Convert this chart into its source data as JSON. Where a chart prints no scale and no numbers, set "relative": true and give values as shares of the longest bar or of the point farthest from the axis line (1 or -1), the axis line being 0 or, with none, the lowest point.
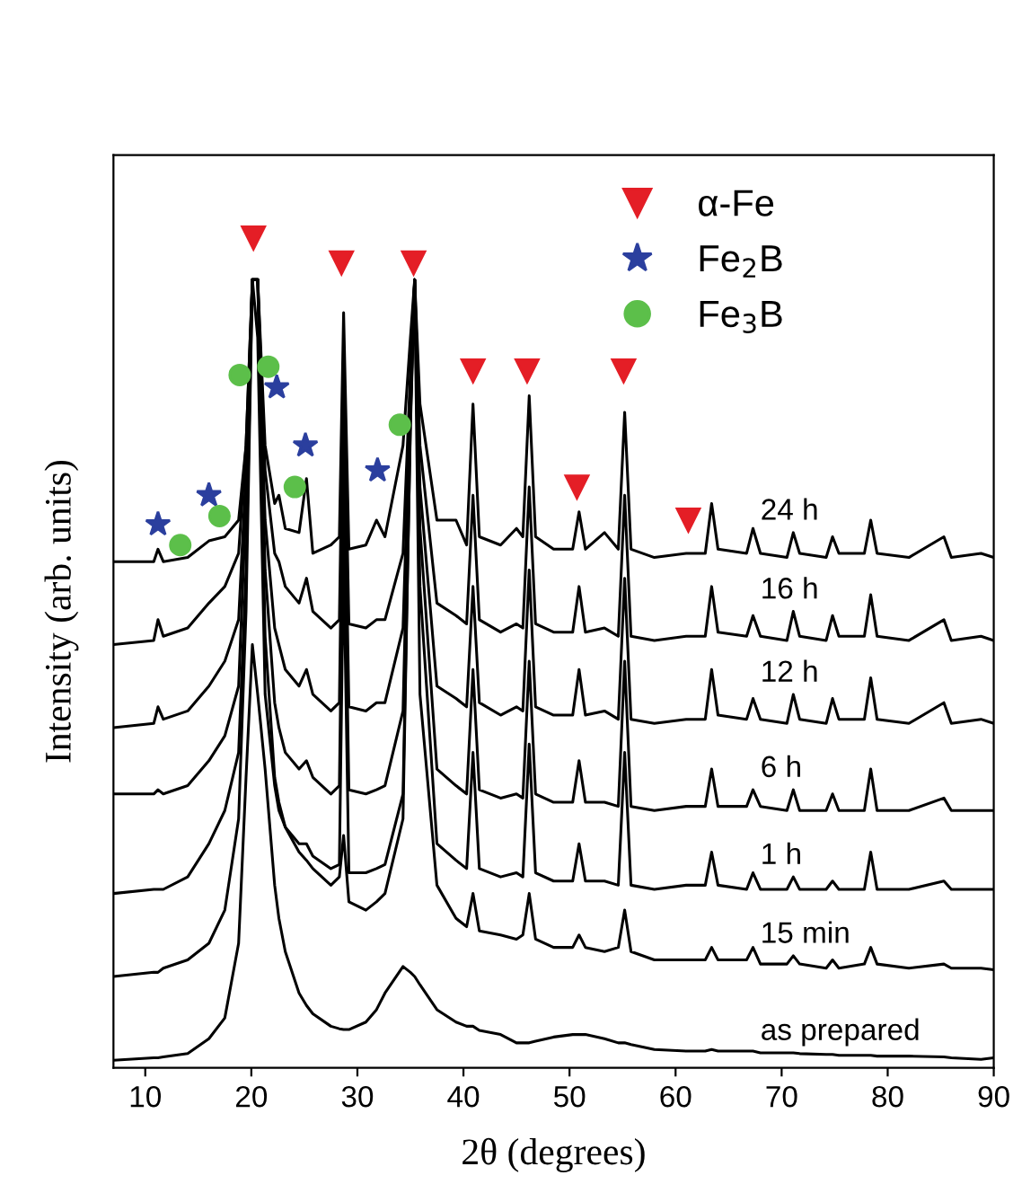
{
  "chart_data": {
    "type": "line",
    "relative": true,
    "xlabel": "2θ (degrees)",
    "ylabel": "Intensity (arb. units)",
    "x": [
      7,
      10.8,
      11.2,
      11.7,
      14,
      16,
      17.5,
      18.8,
      19.5,
      20.1,
      20.6,
      21.3,
      22.2,
      22.6,
      23.2,
      24.5,
      25.2,
      25.8,
      27.5,
      28.3,
      28.7,
      29.2,
      30.8,
      31.8,
      32.6,
      34.3,
      35.0,
      35.4,
      35.9,
      37.5,
      39.3,
      40.3,
      40.9,
      41.5,
      43.5,
      45.0,
      45.6,
      46.2,
      46.8,
      48.5,
      50.3,
      50.9,
      51.5,
      53.3,
      54.6,
      55.2,
      55.8,
      58,
      61,
      62.8,
      63.4,
      64,
      66.7,
      67.3,
      68,
      70.5,
      71.1,
      71.7,
      74.2,
      74.8,
      75.4,
      77.8,
      78.4,
      79,
      82,
      85.3,
      86,
      88.8,
      90
    ],
    "xlim": [
      7,
      90
    ],
    "xticks": [
      10,
      20,
      30,
      40,
      50,
      60,
      70,
      80,
      90
    ],
    "grid": false,
    "legend": "top right",
    "line_style": "solid",
    "marker": "none",
    "series": [
      {
        "name": "24 h",
        "color": "#000000",
        "values": [
          0.61,
          0.61,
          0.625,
          0.61,
          0.615,
          0.635,
          0.64,
          0.66,
          0.75,
          0.95,
          0.95,
          0.75,
          0.68,
          0.69,
          0.65,
          0.645,
          0.71,
          0.62,
          0.63,
          0.64,
          0.91,
          0.625,
          0.63,
          0.66,
          0.64,
          0.75,
          0.88,
          0.95,
          0.8,
          0.66,
          0.66,
          0.63,
          0.8,
          0.64,
          0.63,
          0.65,
          0.64,
          0.81,
          0.64,
          0.625,
          0.625,
          0.67,
          0.625,
          0.645,
          0.625,
          0.79,
          0.625,
          0.615,
          0.62,
          0.62,
          0.68,
          0.625,
          0.62,
          0.65,
          0.62,
          0.615,
          0.645,
          0.62,
          0.615,
          0.64,
          0.62,
          0.62,
          0.66,
          0.62,
          0.615,
          0.64,
          0.615,
          0.62,
          0.615
        ]
      },
      {
        "name": "16 h",
        "color": "#000000",
        "values": [
          0.51,
          0.515,
          0.54,
          0.52,
          0.53,
          0.56,
          0.58,
          0.62,
          0.75,
          0.95,
          0.95,
          0.72,
          0.62,
          0.61,
          0.58,
          0.56,
          0.59,
          0.55,
          0.53,
          0.54,
          0.86,
          0.535,
          0.53,
          0.54,
          0.54,
          0.62,
          0.84,
          0.95,
          0.75,
          0.56,
          0.545,
          0.535,
          0.69,
          0.54,
          0.525,
          0.535,
          0.53,
          0.7,
          0.535,
          0.525,
          0.525,
          0.58,
          0.525,
          0.53,
          0.52,
          0.69,
          0.52,
          0.515,
          0.52,
          0.52,
          0.58,
          0.525,
          0.52,
          0.545,
          0.52,
          0.515,
          0.55,
          0.52,
          0.515,
          0.545,
          0.52,
          0.52,
          0.57,
          0.52,
          0.515,
          0.54,
          0.515,
          0.52,
          0.515
        ]
      },
      {
        "name": "12 h",
        "color": "#000000",
        "values": [
          0.41,
          0.415,
          0.435,
          0.42,
          0.43,
          0.46,
          0.49,
          0.54,
          0.72,
          0.95,
          0.95,
          0.66,
          0.53,
          0.51,
          0.48,
          0.46,
          0.48,
          0.45,
          0.43,
          0.44,
          0.8,
          0.435,
          0.43,
          0.44,
          0.44,
          0.53,
          0.81,
          0.95,
          0.7,
          0.46,
          0.445,
          0.435,
          0.58,
          0.44,
          0.425,
          0.435,
          0.43,
          0.6,
          0.435,
          0.425,
          0.425,
          0.48,
          0.425,
          0.43,
          0.42,
          0.59,
          0.42,
          0.415,
          0.42,
          0.42,
          0.48,
          0.425,
          0.42,
          0.445,
          0.42,
          0.415,
          0.45,
          0.42,
          0.415,
          0.445,
          0.42,
          0.42,
          0.47,
          0.42,
          0.415,
          0.44,
          0.415,
          0.42,
          0.415
        ]
      },
      {
        "name": "6 h",
        "color": "#000000",
        "values": [
          0.33,
          0.33,
          0.335,
          0.33,
          0.34,
          0.37,
          0.4,
          0.46,
          0.68,
          0.95,
          0.95,
          0.6,
          0.44,
          0.41,
          0.38,
          0.36,
          0.37,
          0.35,
          0.33,
          0.34,
          0.72,
          0.335,
          0.33,
          0.335,
          0.34,
          0.43,
          0.79,
          0.95,
          0.65,
          0.36,
          0.34,
          0.33,
          0.48,
          0.335,
          0.325,
          0.33,
          0.325,
          0.49,
          0.33,
          0.32,
          0.32,
          0.37,
          0.32,
          0.32,
          0.315,
          0.49,
          0.315,
          0.31,
          0.315,
          0.315,
          0.36,
          0.315,
          0.315,
          0.335,
          0.315,
          0.31,
          0.335,
          0.31,
          0.31,
          0.33,
          0.31,
          0.31,
          0.36,
          0.31,
          0.31,
          0.325,
          0.31,
          0.31,
          0.31
        ]
      },
      {
        "name": "1 h",
        "color": "#000000",
        "values": [
          0.21,
          0.215,
          0.215,
          0.215,
          0.23,
          0.27,
          0.31,
          0.38,
          0.6,
          0.95,
          0.95,
          0.52,
          0.35,
          0.32,
          0.29,
          0.27,
          0.27,
          0.255,
          0.24,
          0.245,
          0.62,
          0.235,
          0.235,
          0.24,
          0.245,
          0.33,
          0.77,
          0.95,
          0.58,
          0.27,
          0.25,
          0.24,
          0.38,
          0.24,
          0.23,
          0.235,
          0.23,
          0.39,
          0.235,
          0.225,
          0.225,
          0.27,
          0.225,
          0.225,
          0.22,
          0.38,
          0.22,
          0.215,
          0.22,
          0.22,
          0.26,
          0.22,
          0.215,
          0.235,
          0.215,
          0.215,
          0.23,
          0.215,
          0.215,
          0.225,
          0.215,
          0.215,
          0.26,
          0.215,
          0.215,
          0.225,
          0.215,
          0.215,
          0.215
        ]
      },
      {
        "name": "15 min",
        "color": "#000000",
        "values": [
          0.11,
          0.115,
          0.115,
          0.12,
          0.13,
          0.15,
          0.19,
          0.3,
          0.55,
          0.95,
          0.88,
          0.45,
          0.34,
          0.31,
          0.29,
          0.26,
          0.25,
          0.24,
          0.22,
          0.23,
          0.28,
          0.2,
          0.19,
          0.2,
          0.21,
          0.3,
          0.78,
          0.95,
          0.45,
          0.22,
          0.18,
          0.17,
          0.21,
          0.165,
          0.16,
          0.155,
          0.16,
          0.21,
          0.155,
          0.145,
          0.145,
          0.16,
          0.145,
          0.14,
          0.145,
          0.19,
          0.14,
          0.13,
          0.13,
          0.13,
          0.145,
          0.13,
          0.13,
          0.145,
          0.125,
          0.125,
          0.135,
          0.125,
          0.12,
          0.13,
          0.12,
          0.125,
          0.145,
          0.125,
          0.12,
          0.125,
          0.12,
          0.12,
          0.118
        ]
      },
      {
        "name": "as prepared",
        "color": "#000000",
        "values": [
          0.009,
          0.012,
          0.012,
          0.013,
          0.017,
          0.035,
          0.06,
          0.15,
          0.35,
          0.51,
          0.45,
          0.36,
          0.22,
          0.18,
          0.14,
          0.09,
          0.075,
          0.065,
          0.05,
          0.047,
          0.046,
          0.046,
          0.055,
          0.07,
          0.09,
          0.122,
          0.115,
          0.11,
          0.1,
          0.07,
          0.055,
          0.05,
          0.05,
          0.045,
          0.04,
          0.03,
          0.03,
          0.03,
          0.032,
          0.037,
          0.04,
          0.04,
          0.04,
          0.035,
          0.03,
          0.03,
          0.028,
          0.022,
          0.02,
          0.02,
          0.022,
          0.02,
          0.02,
          0.02,
          0.018,
          0.018,
          0.018,
          0.017,
          0.016,
          0.016,
          0.015,
          0.015,
          0.015,
          0.014,
          0.014,
          0.013,
          0.012,
          0.01,
          0.012
        ]
      },
      {
        "name": "α-Fe",
        "type": "scatter",
        "marker": "triangle",
        "color": "#e41e26",
        "x": [
          20.2,
          28.5,
          35.3,
          40.9,
          46.0,
          55.1,
          50.7,
          61.2
        ],
        "values": [
          1.0,
          0.97,
          0.97,
          0.84,
          0.84,
          0.84,
          0.7,
          0.66
        ]
      },
      {
        "name": "Fe$_{2}$B",
        "type": "scatter",
        "marker": "star",
        "color": "#2b3f9e",
        "x": [
          11.2,
          16.0,
          22.4,
          25.1,
          31.9
        ],
        "values": [
          0.655,
          0.69,
          0.82,
          0.75,
          0.72
        ]
      },
      {
        "name": "Fe$_{3}$B",
        "type": "scatter",
        "marker": "circle",
        "color": "#5cbf4a",
        "x": [
          13.3,
          17.0,
          18.9,
          21.6,
          24.1,
          34.0
        ],
        "values": [
          0.63,
          0.665,
          0.835,
          0.845,
          0.7,
          0.775
        ]
      }
    ]
  }
}
